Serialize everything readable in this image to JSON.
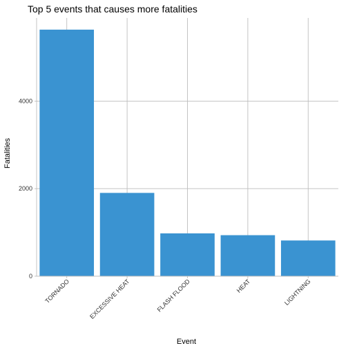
{
  "chart_data": {
    "type": "bar",
    "title": "Top 5 events that causes more fatalities",
    "xlabel": "Event",
    "ylabel": "Fatalities",
    "categories": [
      "TORNADO",
      "EXCESSIVE HEAT",
      "FLASH FLOOD",
      "HEAT",
      "LIGHTNING"
    ],
    "values": [
      5633,
      1903,
      978,
      937,
      816
    ],
    "ylim": [
      0,
      5900
    ],
    "yticks": [
      0,
      2000,
      4000
    ],
    "grid": true,
    "bar_color": "#3a93d1",
    "grid_color": "#bdbdbd"
  }
}
